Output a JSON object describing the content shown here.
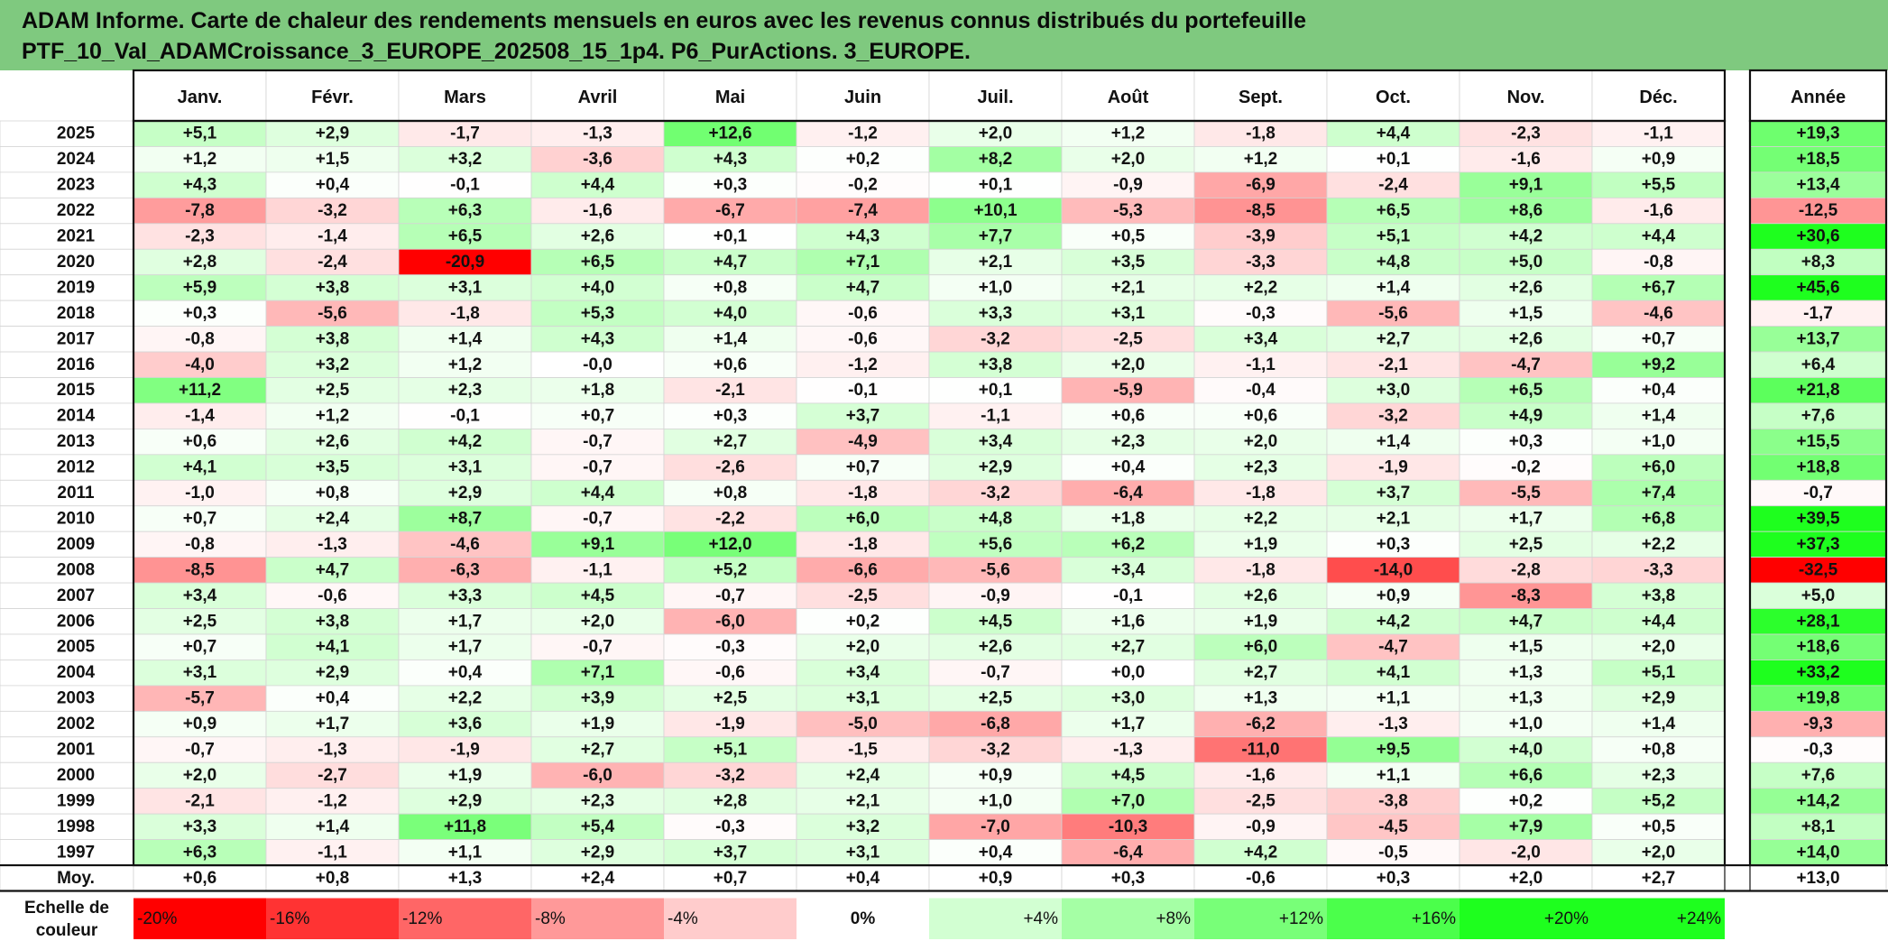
{
  "title": {
    "line1": "ADAM Informe. Carte de chaleur des rendements mensuels en euros avec les revenus connus distribués du portefeuille",
    "line2": "PTF_10_Val_ADAMCroissance_3_EUROPE_202508_15_1p4. P6_PurActions. 3_EUROPE."
  },
  "chart_data": {
    "type": "heatmap",
    "columns": [
      "Janv.",
      "Févr.",
      "Mars",
      "Avril",
      "Mai",
      "Juin",
      "Juil.",
      "Août",
      "Sept.",
      "Oct.",
      "Nov.",
      "Déc."
    ],
    "year_column": "Année",
    "rows": [
      {
        "label": "2025",
        "values": [
          "+5,1",
          "+2,9",
          "-1,7",
          "-1,3",
          "+12,6",
          "-1,2",
          "+2,0",
          "+1,2",
          "-1,8",
          "+4,4",
          "-2,3",
          "-1,1"
        ],
        "year": "+19,3"
      },
      {
        "label": "2024",
        "values": [
          "+1,2",
          "+1,5",
          "+3,2",
          "-3,6",
          "+4,3",
          "+0,2",
          "+8,2",
          "+2,0",
          "+1,2",
          "+0,1",
          "-1,6",
          "+0,9"
        ],
        "year": "+18,5"
      },
      {
        "label": "2023",
        "values": [
          "+4,3",
          "+0,4",
          "-0,1",
          "+4,4",
          "+0,3",
          "-0,2",
          "+0,1",
          "-0,9",
          "-6,9",
          "-2,4",
          "+9,1",
          "+5,5"
        ],
        "year": "+13,4"
      },
      {
        "label": "2022",
        "values": [
          "-7,8",
          "-3,2",
          "+6,3",
          "-1,6",
          "-6,7",
          "-7,4",
          "+10,1",
          "-5,3",
          "-8,5",
          "+6,5",
          "+8,6",
          "-1,6"
        ],
        "year": "-12,5"
      },
      {
        "label": "2021",
        "values": [
          "-2,3",
          "-1,4",
          "+6,5",
          "+2,6",
          "+0,1",
          "+4,3",
          "+7,7",
          "+0,5",
          "-3,9",
          "+5,1",
          "+4,2",
          "+4,4"
        ],
        "year": "+30,6"
      },
      {
        "label": "2020",
        "values": [
          "+2,8",
          "-2,4",
          "-20,9",
          "+6,5",
          "+4,7",
          "+7,1",
          "+2,1",
          "+3,5",
          "-3,3",
          "+4,8",
          "+5,0",
          "-0,8"
        ],
        "year": "+8,3"
      },
      {
        "label": "2019",
        "values": [
          "+5,9",
          "+3,8",
          "+3,1",
          "+4,0",
          "+0,8",
          "+4,7",
          "+1,0",
          "+2,1",
          "+2,2",
          "+1,4",
          "+2,6",
          "+6,7"
        ],
        "year": "+45,6"
      },
      {
        "label": "2018",
        "values": [
          "+0,3",
          "-5,6",
          "-1,8",
          "+5,3",
          "+4,0",
          "-0,6",
          "+3,3",
          "+3,1",
          "-0,3",
          "-5,6",
          "+1,5",
          "-4,6"
        ],
        "year": "-1,7"
      },
      {
        "label": "2017",
        "values": [
          "-0,8",
          "+3,8",
          "+1,4",
          "+4,3",
          "+1,4",
          "-0,6",
          "-3,2",
          "-2,5",
          "+3,4",
          "+2,7",
          "+2,6",
          "+0,7"
        ],
        "year": "+13,7"
      },
      {
        "label": "2016",
        "values": [
          "-4,0",
          "+3,2",
          "+1,2",
          "-0,0",
          "+0,6",
          "-1,2",
          "+3,8",
          "+2,0",
          "-1,1",
          "-2,1",
          "-4,7",
          "+9,2"
        ],
        "year": "+6,4"
      },
      {
        "label": "2015",
        "values": [
          "+11,2",
          "+2,5",
          "+2,3",
          "+1,8",
          "-2,1",
          "-0,1",
          "+0,1",
          "-5,9",
          "-0,4",
          "+3,0",
          "+6,5",
          "+0,4"
        ],
        "year": "+21,8"
      },
      {
        "label": "2014",
        "values": [
          "-1,4",
          "+1,2",
          "-0,1",
          "+0,7",
          "+0,3",
          "+3,7",
          "-1,1",
          "+0,6",
          "+0,6",
          "-3,2",
          "+4,9",
          "+1,4"
        ],
        "year": "+7,6"
      },
      {
        "label": "2013",
        "values": [
          "+0,6",
          "+2,6",
          "+4,2",
          "-0,7",
          "+2,7",
          "-4,9",
          "+3,4",
          "+2,3",
          "+2,0",
          "+1,4",
          "+0,3",
          "+1,0"
        ],
        "year": "+15,5"
      },
      {
        "label": "2012",
        "values": [
          "+4,1",
          "+3,5",
          "+3,1",
          "-0,7",
          "-2,6",
          "+0,7",
          "+2,9",
          "+0,4",
          "+2,3",
          "-1,9",
          "-0,2",
          "+6,0"
        ],
        "year": "+18,8"
      },
      {
        "label": "2011",
        "values": [
          "-1,0",
          "+0,8",
          "+2,9",
          "+4,4",
          "+0,8",
          "-1,8",
          "-3,2",
          "-6,4",
          "-1,8",
          "+3,7",
          "-5,5",
          "+7,4"
        ],
        "year": "-0,7"
      },
      {
        "label": "2010",
        "values": [
          "+0,7",
          "+2,4",
          "+8,7",
          "-0,7",
          "-2,2",
          "+6,0",
          "+4,8",
          "+1,8",
          "+2,2",
          "+2,1",
          "+1,7",
          "+6,8"
        ],
        "year": "+39,5"
      },
      {
        "label": "2009",
        "values": [
          "-0,8",
          "-1,3",
          "-4,6",
          "+9,1",
          "+12,0",
          "-1,8",
          "+5,6",
          "+6,2",
          "+1,9",
          "+0,3",
          "+2,5",
          "+2,2"
        ],
        "year": "+37,3"
      },
      {
        "label": "2008",
        "values": [
          "-8,5",
          "+4,7",
          "-6,3",
          "-1,1",
          "+5,2",
          "-6,6",
          "-5,6",
          "+3,4",
          "-1,8",
          "-14,0",
          "-2,8",
          "-3,3"
        ],
        "year": "-32,5"
      },
      {
        "label": "2007",
        "values": [
          "+3,4",
          "-0,6",
          "+3,3",
          "+4,5",
          "-0,7",
          "-2,5",
          "-0,9",
          "-0,1",
          "+2,6",
          "+0,9",
          "-8,3",
          "+3,8"
        ],
        "year": "+5,0"
      },
      {
        "label": "2006",
        "values": [
          "+2,5",
          "+3,8",
          "+1,7",
          "+2,0",
          "-6,0",
          "+0,2",
          "+4,5",
          "+1,6",
          "+1,9",
          "+4,2",
          "+4,7",
          "+4,4"
        ],
        "year": "+28,1"
      },
      {
        "label": "2005",
        "values": [
          "+0,7",
          "+4,1",
          "+1,7",
          "-0,7",
          "-0,3",
          "+2,0",
          "+2,6",
          "+2,7",
          "+6,0",
          "-4,7",
          "+1,5",
          "+2,0"
        ],
        "year": "+18,6"
      },
      {
        "label": "2004",
        "values": [
          "+3,1",
          "+2,9",
          "+0,4",
          "+7,1",
          "-0,6",
          "+3,4",
          "-0,7",
          "+0,0",
          "+2,7",
          "+4,1",
          "+1,3",
          "+5,1"
        ],
        "year": "+33,2"
      },
      {
        "label": "2003",
        "values": [
          "-5,7",
          "+0,4",
          "+2,2",
          "+3,9",
          "+2,5",
          "+3,1",
          "+2,5",
          "+3,0",
          "+1,3",
          "+1,1",
          "+1,3",
          "+2,9"
        ],
        "year": "+19,8"
      },
      {
        "label": "2002",
        "values": [
          "+0,9",
          "+1,7",
          "+3,6",
          "+1,9",
          "-1,9",
          "-5,0",
          "-6,8",
          "+1,7",
          "-6,2",
          "-1,3",
          "+1,0",
          "+1,4"
        ],
        "year": "-9,3"
      },
      {
        "label": "2001",
        "values": [
          "-0,7",
          "-1,3",
          "-1,9",
          "+2,7",
          "+5,1",
          "-1,5",
          "-3,2",
          "-1,3",
          "-11,0",
          "+9,5",
          "+4,0",
          "+0,8"
        ],
        "year": "-0,3"
      },
      {
        "label": "2000",
        "values": [
          "+2,0",
          "-2,7",
          "+1,9",
          "-6,0",
          "-3,2",
          "+2,4",
          "+0,9",
          "+4,5",
          "-1,6",
          "+1,1",
          "+6,6",
          "+2,3"
        ],
        "year": "+7,6"
      },
      {
        "label": "1999",
        "values": [
          "-2,1",
          "-1,2",
          "+2,9",
          "+2,3",
          "+2,8",
          "+2,1",
          "+1,0",
          "+7,0",
          "-2,5",
          "-3,8",
          "+0,2",
          "+5,2"
        ],
        "year": "+14,2"
      },
      {
        "label": "1998",
        "values": [
          "+3,3",
          "+1,4",
          "+11,8",
          "+5,4",
          "-0,3",
          "+3,2",
          "-7,0",
          "-10,3",
          "-0,9",
          "-4,5",
          "+7,9",
          "+0,5"
        ],
        "year": "+8,1"
      },
      {
        "label": "1997",
        "values": [
          "+6,3",
          "-1,1",
          "+1,1",
          "+2,9",
          "+3,7",
          "+3,1",
          "+0,4",
          "-6,4",
          "+4,2",
          "-0,5",
          "-2,0",
          "+2,0"
        ],
        "year": "+14,0"
      }
    ],
    "average": {
      "label": "Moy.",
      "values": [
        "+0,6",
        "+0,8",
        "+1,3",
        "+2,4",
        "+0,7",
        "+0,4",
        "+0,9",
        "+0,3",
        "-0,6",
        "+0,3",
        "+2,0",
        "+2,7"
      ],
      "year": "+13,0"
    },
    "legend": {
      "label_line1": "Echelle de",
      "label_line2": "couleur",
      "items": [
        "-20%",
        "-16%",
        "-12%",
        "-8%",
        "-4%",
        "0%",
        "+4%",
        "+8%",
        "+12%",
        "+16%",
        "+20%",
        "+24%"
      ]
    },
    "colors": {
      "negative_max": "#ff0000",
      "neutral": "#ffffff",
      "positive_max": "#00ff00",
      "title_bg": "#7fc97f"
    }
  }
}
